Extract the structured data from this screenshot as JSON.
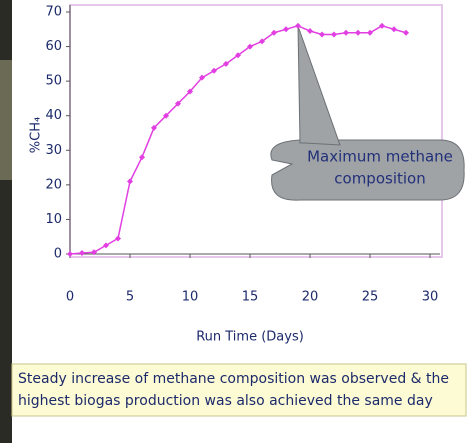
{
  "chart_data": {
    "type": "line",
    "x": [
      0,
      1,
      2,
      3,
      4,
      5,
      6,
      7,
      8,
      9,
      10,
      11,
      12,
      13,
      14,
      15,
      16,
      17,
      18,
      19,
      20,
      21,
      22,
      23,
      24,
      25,
      26,
      27,
      28
    ],
    "series": [
      {
        "name": "%CH₄",
        "color": "#e23fe2",
        "values": [
          0,
          0.3,
          0.5,
          2.5,
          4.5,
          21,
          28,
          36.5,
          40,
          43.5,
          47,
          51,
          53,
          55,
          57.5,
          60,
          61.5,
          64,
          65,
          66,
          64.5,
          63.5,
          63.5,
          64,
          64,
          64,
          66,
          65,
          64
        ]
      }
    ],
    "xlabel": "Run Time (Days)",
    "ylabel": "%CH₄",
    "xlim": [
      0,
      30
    ],
    "xticks": [
      0,
      5,
      10,
      15,
      20,
      25,
      30
    ],
    "ylim": [
      0,
      70
    ],
    "yticks": [
      0,
      10,
      20,
      30,
      40,
      50,
      60,
      70
    ],
    "annotation": [
      "Maximum methane",
      "composition"
    ],
    "caption": [
      "Steady increase of methane composition was observed & the",
      "highest biogas production was also achieved the same day"
    ]
  }
}
